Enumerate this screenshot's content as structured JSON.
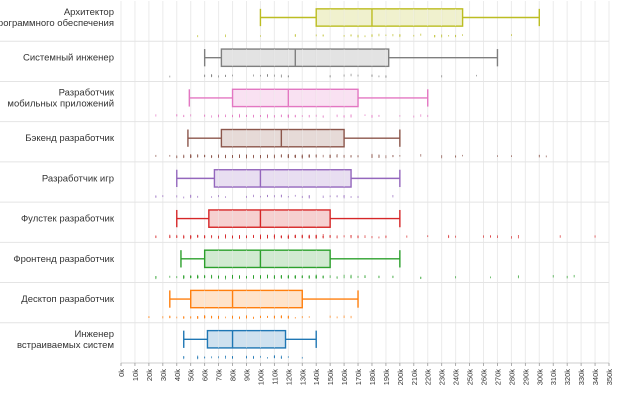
{
  "chart_data": {
    "type": "boxplot",
    "orientation": "horizontal",
    "title": "",
    "xlabel": "",
    "ylabel": "",
    "xlim": [
      0,
      350000
    ],
    "grid": true,
    "x_ticks": [
      {
        "value": 0,
        "label": "0k"
      },
      {
        "value": 10000,
        "label": "10k"
      },
      {
        "value": 20000,
        "label": "20k"
      },
      {
        "value": 30000,
        "label": "30k"
      },
      {
        "value": 40000,
        "label": "40k"
      },
      {
        "value": 50000,
        "label": "50k"
      },
      {
        "value": 60000,
        "label": "60k"
      },
      {
        "value": 70000,
        "label": "70k"
      },
      {
        "value": 80000,
        "label": "80k"
      },
      {
        "value": 90000,
        "label": "90k"
      },
      {
        "value": 100000,
        "label": "100k"
      },
      {
        "value": 110000,
        "label": "110k"
      },
      {
        "value": 120000,
        "label": "120k"
      },
      {
        "value": 130000,
        "label": "130k"
      },
      {
        "value": 140000,
        "label": "140k"
      },
      {
        "value": 150000,
        "label": "150k"
      },
      {
        "value": 160000,
        "label": "160k"
      },
      {
        "value": 170000,
        "label": "170k"
      },
      {
        "value": 180000,
        "label": "180k"
      },
      {
        "value": 190000,
        "label": "190k"
      },
      {
        "value": 200000,
        "label": "200k"
      },
      {
        "value": 210000,
        "label": "210k"
      },
      {
        "value": 220000,
        "label": "220k"
      },
      {
        "value": 230000,
        "label": "230k"
      },
      {
        "value": 240000,
        "label": "240k"
      },
      {
        "value": 250000,
        "label": "250k"
      },
      {
        "value": 260000,
        "label": "260k"
      },
      {
        "value": 270000,
        "label": "270k"
      },
      {
        "value": 280000,
        "label": "280k"
      },
      {
        "value": 290000,
        "label": "290k"
      },
      {
        "value": 300000,
        "label": "300k"
      },
      {
        "value": 310000,
        "label": "310k"
      },
      {
        "value": 320000,
        "label": "320k"
      },
      {
        "value": 330000,
        "label": "330k"
      },
      {
        "value": 340000,
        "label": "340k"
      },
      {
        "value": 350000,
        "label": "350k"
      }
    ],
    "series": [
      {
        "category_lines": [
          "Архитектор",
          "программного обеспечения"
        ],
        "color": "#bcbd22",
        "whisker_low": 100000,
        "q1": 140000,
        "median": 180000,
        "q3": 245000,
        "whisker_high": 300000,
        "density": "low"
      },
      {
        "category_lines": [
          "Системный инженер"
        ],
        "color": "#7f7f7f",
        "whisker_low": 60000,
        "q1": 72000,
        "median": 125000,
        "q3": 192000,
        "whisker_high": 270000,
        "density": "low"
      },
      {
        "category_lines": [
          "Разработчик",
          "мобильных приложений"
        ],
        "color": "#e377c2",
        "whisker_low": 49000,
        "q1": 80000,
        "median": 120000,
        "q3": 170000,
        "whisker_high": 220000,
        "density": "medium"
      },
      {
        "category_lines": [
          "Бэкенд разработчик"
        ],
        "color": "#8c564b",
        "whisker_low": 48000,
        "q1": 72000,
        "median": 115000,
        "q3": 160000,
        "whisker_high": 200000,
        "density": "high"
      },
      {
        "category_lines": [
          "Разработчик игр"
        ],
        "color": "#9467bd",
        "whisker_low": 40000,
        "q1": 67000,
        "median": 100000,
        "q3": 165000,
        "whisker_high": 200000,
        "density": "low"
      },
      {
        "category_lines": [
          "Фулстек разработчик"
        ],
        "color": "#d62728",
        "whisker_low": 40000,
        "q1": 63000,
        "median": 100000,
        "q3": 150000,
        "whisker_high": 200000,
        "density": "high"
      },
      {
        "category_lines": [
          "Фронтенд разработчик"
        ],
        "color": "#2ca02c",
        "whisker_low": 43000,
        "q1": 60000,
        "median": 100000,
        "q3": 150000,
        "whisker_high": 200000,
        "density": "high"
      },
      {
        "category_lines": [
          "Десктоп разработчик"
        ],
        "color": "#ff7f0e",
        "whisker_low": 35000,
        "q1": 50000,
        "median": 80000,
        "q3": 130000,
        "whisker_high": 170000,
        "density": "medium"
      },
      {
        "category_lines": [
          "Инженер",
          "встраиваемых систем"
        ],
        "color": "#1f77b4",
        "whisker_low": 45000,
        "q1": 62000,
        "median": 80000,
        "q3": 118000,
        "whisker_high": 140000,
        "density": "low"
      }
    ]
  }
}
